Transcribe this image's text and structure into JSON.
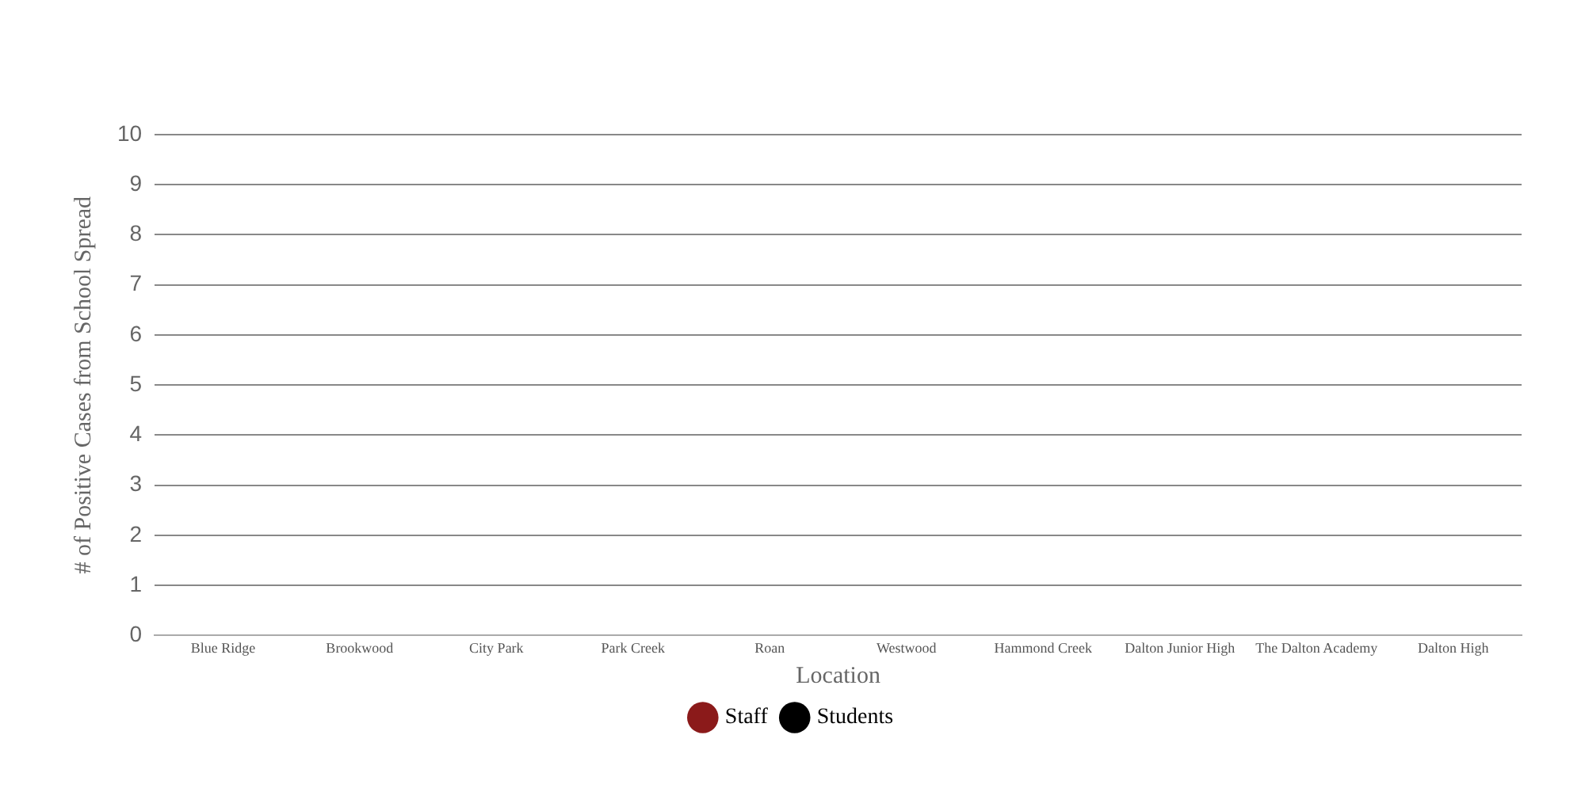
{
  "chart_data": {
    "type": "bar",
    "xlabel": "Location",
    "ylabel": "# of Positive Cases from School Spread",
    "categories": [
      "Blue Ridge",
      "Brookwood",
      "City Park",
      "Park Creek",
      "Roan",
      "Westwood",
      "Hammond Creek",
      "Dalton Junior High",
      "The Dalton Academy",
      "Dalton High"
    ],
    "series": [
      {
        "name": "Staff",
        "color": "#8b1a1a",
        "values": [
          0,
          0,
          0,
          0,
          0,
          0,
          0,
          0,
          0,
          0
        ]
      },
      {
        "name": "Students",
        "color": "#000000",
        "values": [
          0,
          0,
          0,
          0,
          0,
          0,
          0,
          0,
          0,
          0
        ]
      }
    ],
    "ylim": [
      0,
      10
    ],
    "yticks": [
      0,
      1,
      2,
      3,
      4,
      5,
      6,
      7,
      8,
      9,
      10
    ],
    "grid": "y",
    "legend": "bottom"
  }
}
